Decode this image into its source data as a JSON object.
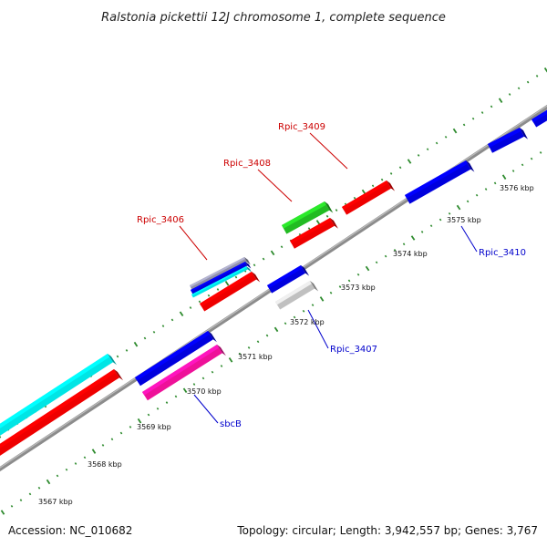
{
  "title": "Ralstonia pickettii 12J chromosome 1, complete sequence",
  "footer": {
    "accession": "Accession: NC_010682",
    "summary": "Topology: circular; Length: 3,942,557 bp; Genes: 3,767"
  },
  "colors": {
    "backbone": "#8c8c8c",
    "ticks": "#2e8b2e",
    "forward_label": "#cc0000",
    "reverse_label": "#0000cc"
  },
  "ticks": [
    {
      "label": "3567 kbp",
      "kbp": 3567
    },
    {
      "label": "3568 kbp",
      "kbp": 3568
    },
    {
      "label": "3569 kbp",
      "kbp": 3569
    },
    {
      "label": "3570 kbp",
      "kbp": 3570
    },
    {
      "label": "3571 kbp",
      "kbp": 3571
    },
    {
      "label": "3572 kbp",
      "kbp": 3572
    },
    {
      "label": "3573 kbp",
      "kbp": 3573
    },
    {
      "label": "3574 kbp",
      "kbp": 3574
    },
    {
      "label": "3575 kbp",
      "kbp": 3575
    },
    {
      "label": "3576 kbp",
      "kbp": 3576
    }
  ],
  "gene_labels": [
    {
      "text": "Rpic_3409",
      "strand": "forward"
    },
    {
      "text": "Rpic_3408",
      "strand": "forward"
    },
    {
      "text": "Rpic_3406",
      "strand": "forward"
    },
    {
      "text": "Rpic_3410",
      "strand": "reverse"
    },
    {
      "text": "Rpic_3407",
      "strand": "reverse"
    },
    {
      "text": "sbcB",
      "strand": "reverse"
    }
  ]
}
